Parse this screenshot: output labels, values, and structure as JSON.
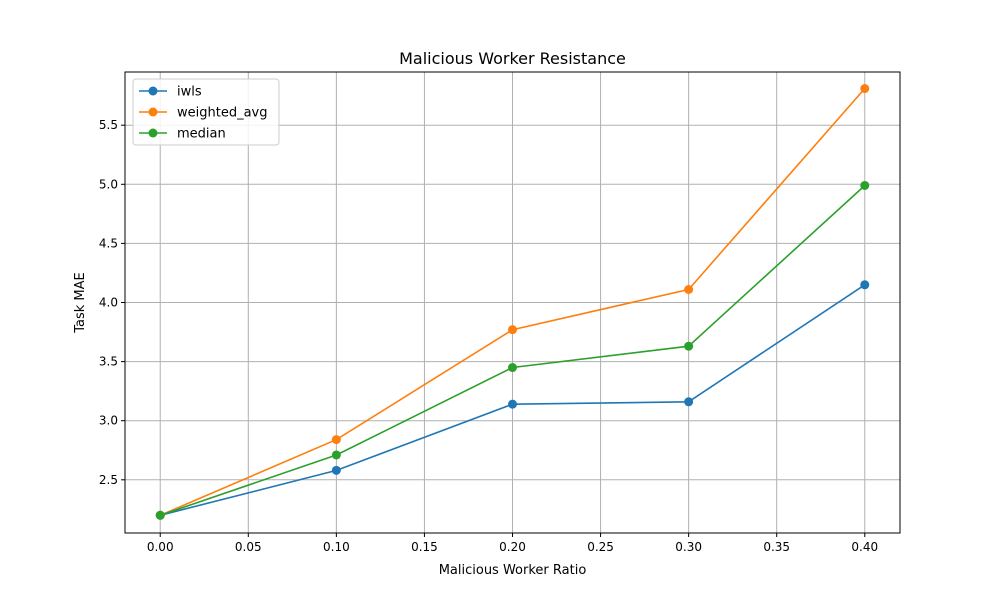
{
  "chart_data": {
    "type": "line",
    "title": "Malicious Worker Resistance",
    "xlabel": "Malicious Worker Ratio",
    "ylabel": "Task MAE",
    "x": [
      0.0,
      0.1,
      0.2,
      0.3,
      0.4
    ],
    "xlim": [
      -0.02,
      0.42
    ],
    "ylim": [
      2.05,
      5.95
    ],
    "x_ticks": [
      "0.00",
      "0.05",
      "0.10",
      "0.15",
      "0.20",
      "0.25",
      "0.30",
      "0.35",
      "0.40"
    ],
    "y_ticks": [
      "2.5",
      "3.0",
      "3.5",
      "4.0",
      "4.5",
      "5.0",
      "5.5"
    ],
    "grid": true,
    "legend_position": "top-left",
    "series": [
      {
        "name": "iwls",
        "color": "#1f77b4",
        "values": [
          2.2,
          2.58,
          3.14,
          3.16,
          4.15
        ]
      },
      {
        "name": "weighted_avg",
        "color": "#ff7f0e",
        "values": [
          2.2,
          2.84,
          3.77,
          4.11,
          5.81
        ]
      },
      {
        "name": "median",
        "color": "#2ca02c",
        "values": [
          2.2,
          2.71,
          3.45,
          3.63,
          4.99
        ]
      }
    ]
  }
}
